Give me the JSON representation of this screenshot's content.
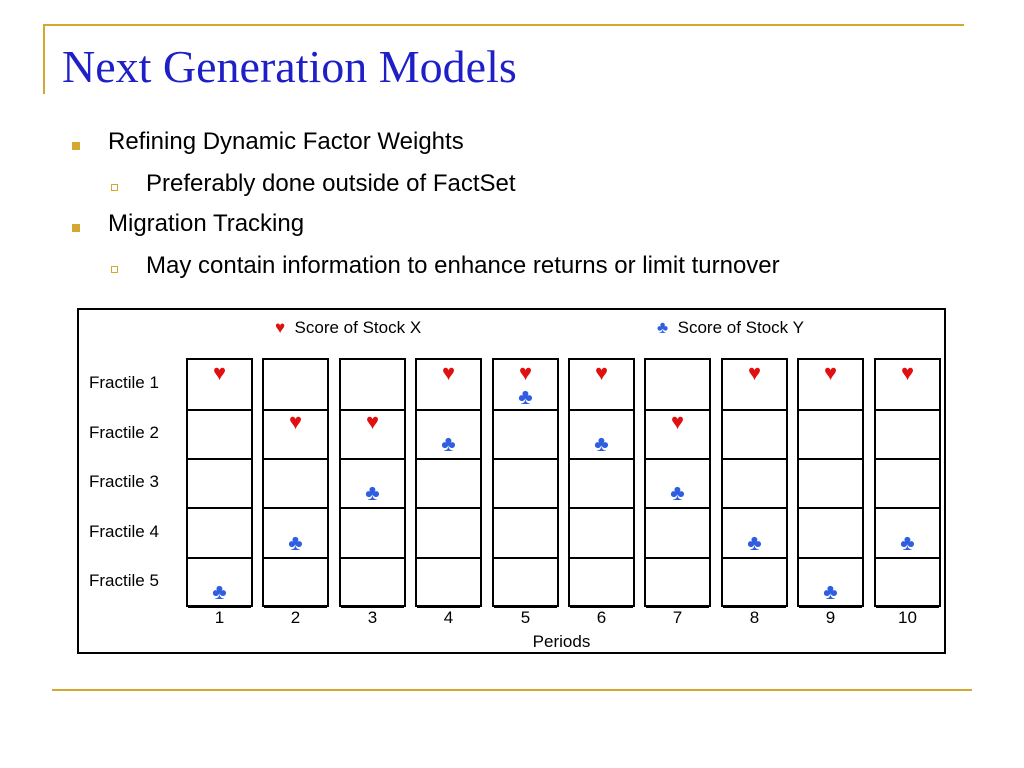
{
  "slide": {
    "title": "Next Generation Models",
    "bullets": [
      {
        "level": 1,
        "text": "Refining Dynamic Factor Weights"
      },
      {
        "level": 2,
        "text": "Preferably done outside of FactSet"
      },
      {
        "level": 1,
        "text": "Migration Tracking"
      },
      {
        "level": 2,
        "text": "May contain information to enhance returns or limit turnover"
      }
    ]
  },
  "diagram": {
    "legend": [
      {
        "symbol": "♥",
        "label": "Score of Stock X",
        "color": "#e01010"
      },
      {
        "symbol": "♣",
        "label": "Score of Stock Y",
        "color": "#2f5fe0"
      }
    ],
    "row_labels": [
      "Fractile 1",
      "Fractile 2",
      "Fractile 3",
      "Fractile 4",
      "Fractile 5"
    ],
    "periods": [
      "1",
      "2",
      "3",
      "4",
      "5",
      "6",
      "7",
      "8",
      "9",
      "10"
    ],
    "x_axis_label": "Periods",
    "stock_x_fractile": [
      1,
      2,
      2,
      1,
      1,
      1,
      2,
      1,
      1,
      1
    ],
    "stock_y_fractile": [
      5,
      4,
      3,
      2,
      1,
      2,
      3,
      4,
      5,
      4
    ],
    "colors": {
      "heart": "#e01010",
      "club": "#2f5fe0",
      "accent": "#d4a830",
      "title": "#1f1fc8"
    }
  }
}
